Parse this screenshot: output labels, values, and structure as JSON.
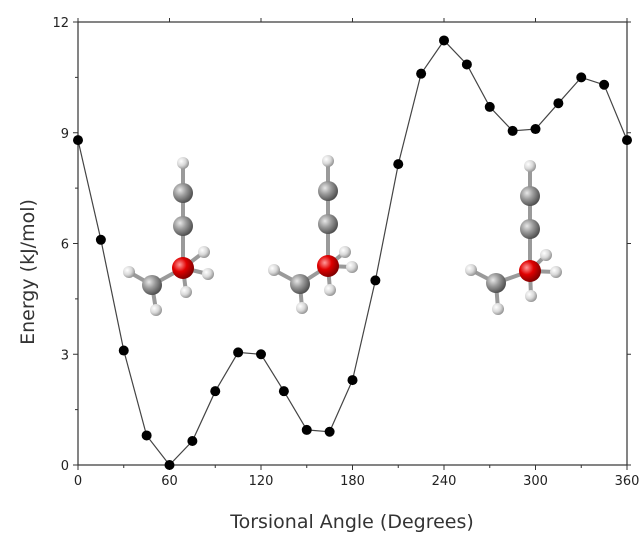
{
  "chart_data": {
    "type": "scatter",
    "line": true,
    "xlabel": "Torsional Angle (Degrees)",
    "ylabel": "Energy (kJ/mol)",
    "xlim": [
      0,
      360
    ],
    "ylim": [
      0,
      12
    ],
    "xticks": [
      0,
      60,
      120,
      180,
      240,
      300,
      360
    ],
    "yticks": [
      0,
      3,
      6,
      9,
      12
    ],
    "grid": false,
    "legend": "none",
    "marker_color": "#000000",
    "line_color": "#444444",
    "x": [
      0,
      15,
      30,
      45,
      60,
      75,
      90,
      105,
      120,
      135,
      150,
      165,
      180,
      195,
      210,
      225,
      240,
      255,
      270,
      285,
      300,
      315,
      330,
      345,
      360
    ],
    "y": [
      8.8,
      6.1,
      3.1,
      0.8,
      0.0,
      0.65,
      2.0,
      3.05,
      3.0,
      2.0,
      0.95,
      0.9,
      2.3,
      5.0,
      8.15,
      10.6,
      11.5,
      10.85,
      9.7,
      9.05,
      9.1,
      9.8,
      10.5,
      10.3,
      8.8
    ]
  },
  "insets": [
    {
      "name": "conformer-1",
      "colors": {
        "carbon": "#8a8a8a",
        "oxygen": "#e00000",
        "hydrogen": "#d8d8d8"
      }
    },
    {
      "name": "conformer-2",
      "colors": {
        "carbon": "#8a8a8a",
        "oxygen": "#e00000",
        "hydrogen": "#d8d8d8"
      }
    },
    {
      "name": "conformer-3",
      "colors": {
        "carbon": "#8a8a8a",
        "oxygen": "#e00000",
        "hydrogen": "#d8d8d8"
      }
    }
  ]
}
